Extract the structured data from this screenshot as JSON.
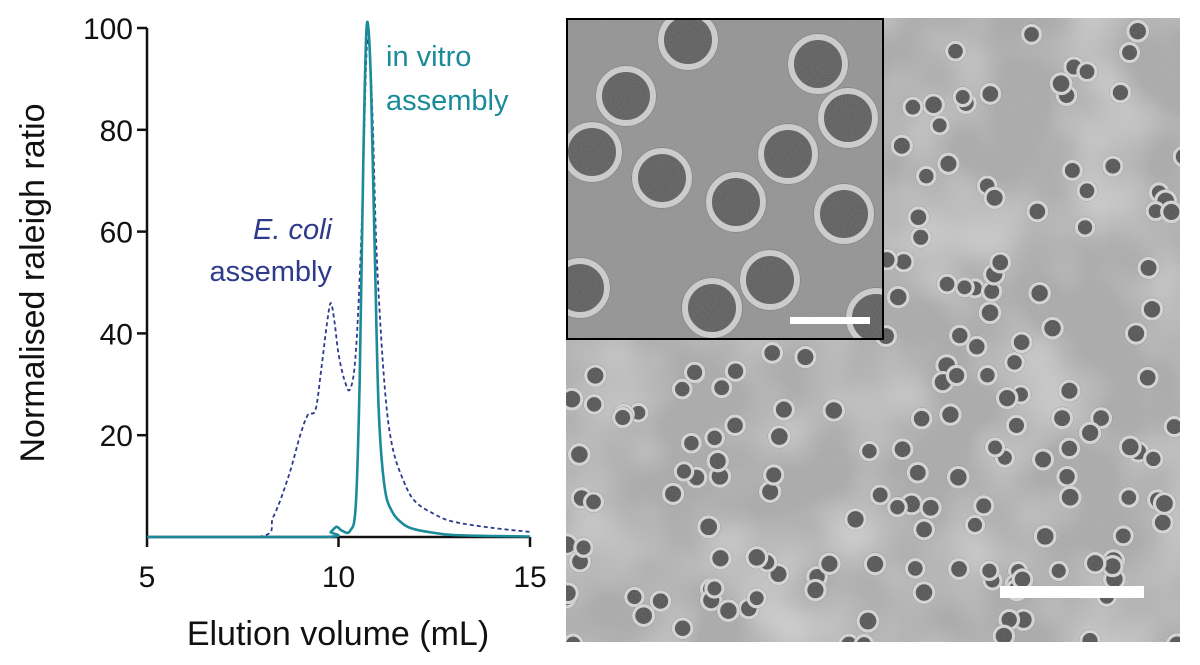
{
  "chart_data": {
    "type": "line",
    "xlabel": "Elution volume (mL)",
    "ylabel": "Normalised raleigh ratio",
    "xlim": [
      5,
      15
    ],
    "ylim": [
      0,
      100
    ],
    "x_ticks": [
      "5",
      "10",
      "15"
    ],
    "y_ticks": [
      "20",
      "40",
      "60",
      "80",
      "100"
    ],
    "x_tick_values": [
      5,
      10,
      15
    ],
    "y_tick_values": [
      20,
      40,
      60,
      80,
      100
    ],
    "grid": false,
    "series": [
      {
        "name": "E. coli assembly",
        "color": "#2e3a8c",
        "style": "dashed",
        "x": [
          5,
          7.9,
          8.3,
          8.7,
          9.0,
          9.2,
          9.4,
          9.55,
          9.7,
          9.8,
          9.9,
          10.0,
          10.15,
          10.3,
          10.45,
          10.6,
          10.7,
          10.75,
          10.82,
          10.9,
          11.0,
          11.2,
          11.4,
          11.7,
          12.0,
          12.5,
          13.0,
          14.0,
          15.0
        ],
        "y": [
          0,
          0,
          4,
          12,
          20,
          24,
          25,
          33,
          42,
          46,
          42,
          36,
          31,
          29,
          36,
          60,
          88,
          97,
          95,
          80,
          55,
          30,
          18,
          11,
          7,
          4.5,
          3,
          1.8,
          1
        ]
      },
      {
        "name": "in vitro assembly",
        "color": "#1b8b9a",
        "style": "solid",
        "x": [
          5,
          9.6,
          9.8,
          9.95,
          10.1,
          10.3,
          10.45,
          10.55,
          10.65,
          10.72,
          10.78,
          10.85,
          10.95,
          11.05,
          11.2,
          11.4,
          11.7,
          12.0,
          12.5,
          13.0,
          14.0,
          15.0
        ],
        "y": [
          0,
          0,
          1,
          2,
          1.2,
          1.2,
          6,
          30,
          75,
          98,
          100,
          88,
          55,
          25,
          10,
          5,
          2.5,
          1.5,
          0.8,
          0.4,
          0.2,
          0.1
        ]
      }
    ],
    "annotations": [
      {
        "text": "in vitro",
        "color": "#1b8b9a",
        "italic": false
      },
      {
        "text": "assembly",
        "color": "#1b8b9a",
        "italic": false
      },
      {
        "text": "E. coli",
        "color": "#2e3a8c",
        "italic": true
      },
      {
        "text": "assembly",
        "color": "#2e3a8c",
        "italic": false
      }
    ]
  },
  "micrograph": {
    "description_icon": "tem-micrograph-image",
    "inset_border_color": "#000000"
  }
}
